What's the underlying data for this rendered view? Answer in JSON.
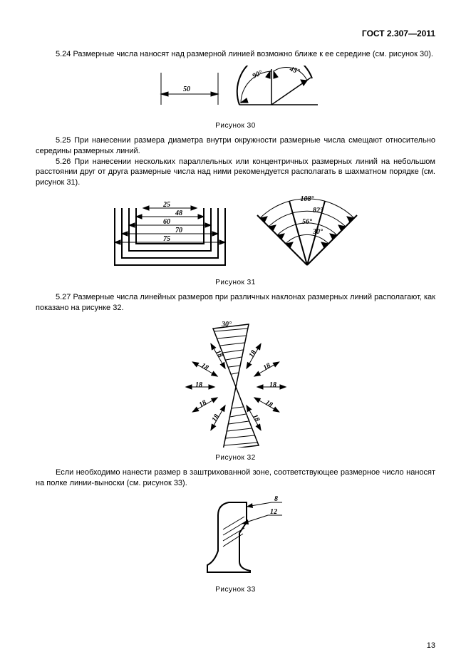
{
  "header": "ГОСТ 2.307—2011",
  "page_number": "13",
  "p524": "5.24  Размерные числа наносят над размерной линией возможно ближе к ее середине (см. рисунок 30).",
  "fig30_caption": "Рисунок 30",
  "p525": "5.25  При нанесении размера диаметра внутри окружности размерные числа смещают относительно середины размерных линий.",
  "p526": "5.26  При нанесении нескольких параллельных или концентричных размерных линий на небольшом расстоянии друг от друга размерные числа над ними рекомендуется располагать в шахматном порядке (см. рисунок 31).",
  "fig31_caption": "Рисунок 31",
  "p527": "5.27  Размерные числа линейных размеров при различных наклонах размерных линий располагают, как показано на рисунке 32.",
  "fig32_caption": "Рисунок 32",
  "p_after32": "Если необходимо нанести размер в заштрихованной зоне, соответствующее размерное число наносят на полке линии-выноски (см. рисунок 33).",
  "fig33_caption": "Рисунок 33",
  "fig30": {
    "dim1": "50",
    "dim2": "90°",
    "dim3": "45°"
  },
  "fig31": {
    "left": [
      "25",
      "48",
      "60",
      "70",
      "75"
    ],
    "right": [
      "108°",
      "82°",
      "56°",
      "30°"
    ]
  },
  "fig32": {
    "angle": "30°",
    "val": "18"
  },
  "fig33": {
    "v1": "8",
    "v2": "12"
  },
  "colors": {
    "stroke": "#000000",
    "bg": "#ffffff"
  }
}
